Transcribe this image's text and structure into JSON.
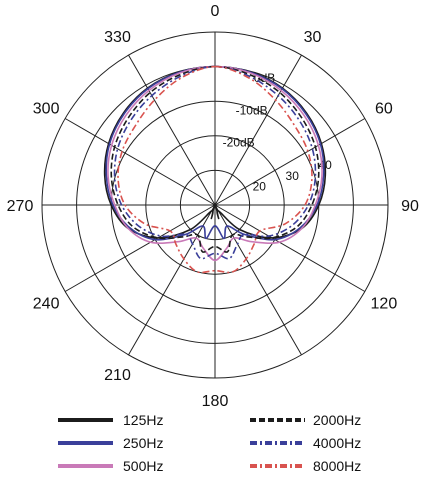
{
  "chart_data": {
    "type": "polar-line",
    "title": "",
    "angle_unit": "degrees",
    "angle_ticks": [
      {
        "angle": 0,
        "label": "0"
      },
      {
        "angle": 30,
        "label": "30"
      },
      {
        "angle": 60,
        "label": "60"
      },
      {
        "angle": 90,
        "label": "90"
      },
      {
        "angle": 120,
        "label": "120"
      },
      {
        "angle": 180,
        "label": "180"
      },
      {
        "angle": 210,
        "label": "210"
      },
      {
        "angle": 240,
        "label": "240"
      },
      {
        "angle": 270,
        "label": "270"
      },
      {
        "angle": 300,
        "label": "300"
      },
      {
        "angle": 330,
        "label": "330"
      }
    ],
    "radial_range_dB": [
      -40,
      10
    ],
    "ring_levels_dB": [
      -40,
      -30,
      -20,
      -10,
      0,
      10
    ],
    "ring_labels": [
      {
        "dB": 0,
        "label": "0dB"
      },
      {
        "dB": -10,
        "label": "-10dB"
      },
      {
        "dB": -20,
        "label": "-20dB"
      }
    ],
    "scale_numbers": [
      "20",
      "30",
      "40"
    ],
    "theta": [
      0,
      15,
      30,
      45,
      60,
      75,
      90,
      105,
      120,
      135,
      150,
      165,
      180,
      195,
      210,
      225,
      240,
      255,
      270,
      285,
      300,
      315,
      330,
      345
    ],
    "series": [
      {
        "name": "125Hz",
        "color": "#1c1c1c",
        "dash": "solid",
        "values": [
          0,
          -0.2,
          -1,
          -2.5,
          -4.5,
          -7,
          -10,
          -14,
          -21,
          -30,
          -38,
          -36,
          -40,
          -36,
          -38,
          -30,
          -21,
          -14,
          -10,
          -7,
          -4.5,
          -2.5,
          -1,
          -0.2
        ]
      },
      {
        "name": "250Hz",
        "color": "#3a3f9a",
        "dash": "solid",
        "values": [
          0,
          -0.3,
          -1.2,
          -2.8,
          -4.8,
          -7.5,
          -10.5,
          -14.5,
          -20,
          -28,
          -33,
          -30,
          -34,
          -30,
          -33,
          -28,
          -20,
          -14.5,
          -10.5,
          -7.5,
          -4.8,
          -2.8,
          -1.2,
          -0.3
        ]
      },
      {
        "name": "500Hz",
        "color": "#c97ab8",
        "dash": "solid",
        "values": [
          0,
          -0.5,
          -1.8,
          -3.5,
          -5.5,
          -8,
          -11,
          -14,
          -18.5,
          -25,
          -29,
          -27,
          -24,
          -27,
          -29,
          -25,
          -18.5,
          -14,
          -11,
          -8,
          -5.5,
          -3.5,
          -1.8,
          -0.5
        ]
      },
      {
        "name": "2000Hz",
        "color": "#1c1c1c",
        "dash": "dash",
        "values": [
          0,
          -1,
          -2.5,
          -4.5,
          -6.5,
          -9,
          -12,
          -15.5,
          -21,
          -27,
          -30,
          -26,
          -28,
          -26,
          -30,
          -27,
          -21,
          -15.5,
          -12,
          -9,
          -6.5,
          -4.5,
          -2.5,
          -1
        ]
      },
      {
        "name": "4000Hz",
        "color": "#3a3f9a",
        "dash": "dashdot",
        "values": [
          0,
          -1.5,
          -3.5,
          -5.5,
          -7.5,
          -10,
          -13,
          -17,
          -22,
          -28,
          -27,
          -24,
          -26,
          -24,
          -27,
          -28,
          -22,
          -17,
          -13,
          -10,
          -7.5,
          -5.5,
          -3.5,
          -1.5
        ]
      },
      {
        "name": "8000Hz",
        "color": "#d9534f",
        "dash": "dashdot",
        "values": [
          0,
          -2,
          -5,
          -7.5,
          -9,
          -11,
          -14,
          -19,
          -25,
          -24,
          -22,
          -20,
          -21,
          -20,
          -22,
          -24,
          -25,
          -19,
          -14,
          -11,
          -9,
          -7.5,
          -5,
          -2
        ]
      }
    ]
  }
}
